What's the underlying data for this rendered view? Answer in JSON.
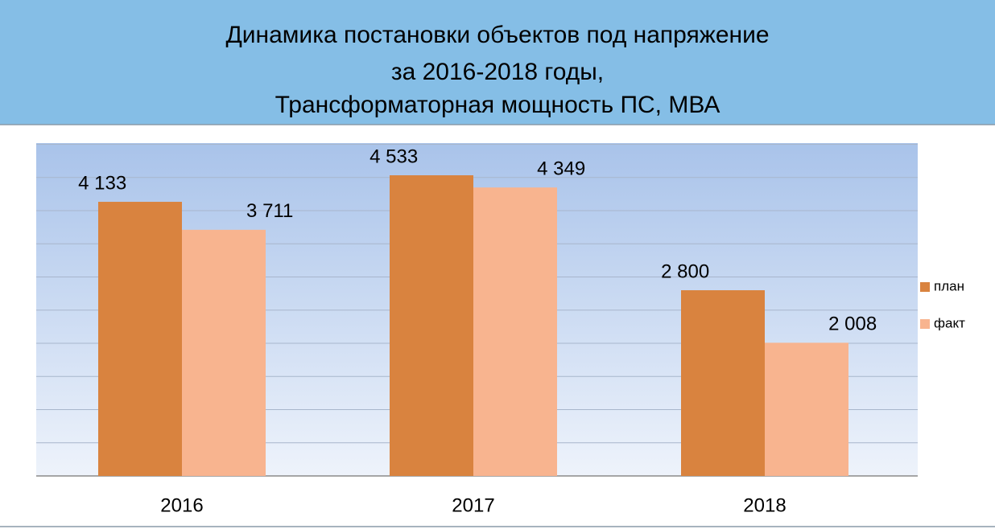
{
  "chart_data": {
    "type": "bar",
    "title": [
      "Динамика постановки объектов под напряжение",
      "за 2016-2018 годы,",
      "Трансформаторная мощность ПС, МВА"
    ],
    "categories": [
      "2016",
      "2017",
      "2018"
    ],
    "series": [
      {
        "name": "план",
        "color": "#d9833f",
        "values": [
          4133,
          4533,
          2800
        ],
        "value_labels": [
          "4 133",
          "4 533",
          "2 800"
        ]
      },
      {
        "name": "факт",
        "color": "#f8b48f",
        "values": [
          3711,
          4349,
          2008
        ],
        "value_labels": [
          "3 711",
          "4 349",
          "2 008"
        ]
      }
    ],
    "ylim": [
      0,
      5000
    ],
    "yticks": [
      0,
      500,
      1000,
      1500,
      2000,
      2500,
      3000,
      3500,
      4000,
      4500,
      5000
    ],
    "grid": true,
    "legend": "right"
  }
}
